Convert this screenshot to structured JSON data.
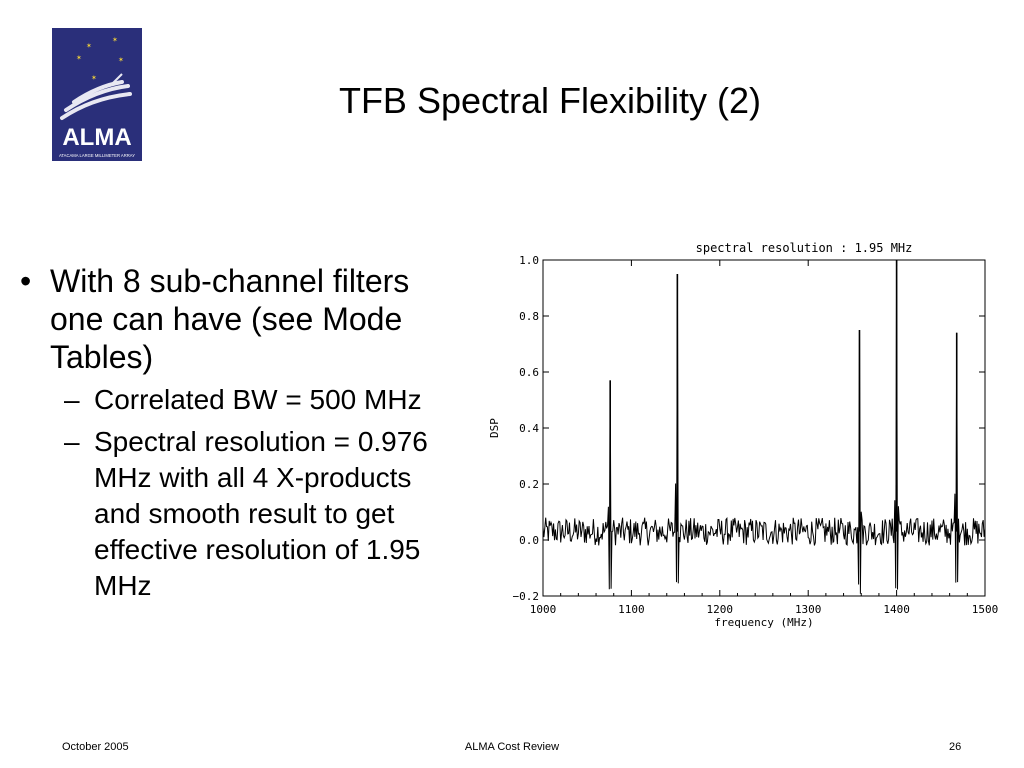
{
  "slide": {
    "title": "TFB Spectral Flexibility (2)"
  },
  "logo": {
    "text": "ALMA",
    "subtitle": "ATACAMA LARGE MILLIMETER ARRAY",
    "bg_color": "#2a2f7a"
  },
  "bullets": {
    "main": "With 8 sub-channel filters one can have (see Mode Tables)",
    "sub": [
      "Correlated BW = 500 MHz",
      "Spectral resolution = 0.976 MHz with all 4 X-products and smooth result to get effective resolution of 1.95 MHz"
    ]
  },
  "chart_data": {
    "type": "line",
    "title": "spectral resolution : 1.95 MHz",
    "xlabel": "frequency (MHz)",
    "ylabel": "DSP",
    "xlim": [
      1000,
      1500
    ],
    "ylim": [
      -0.2,
      1.0
    ],
    "xticks": [
      "1000",
      "1100",
      "1200",
      "1300",
      "1400",
      "1500"
    ],
    "yticks": [
      "−0.2",
      "0.0",
      "0.2",
      "0.4",
      "0.6",
      "0.8",
      "1.0"
    ],
    "baseline": 0.03,
    "noise_amplitude": 0.05,
    "peaks": [
      {
        "x": 1076,
        "y": 0.57
      },
      {
        "x": 1152,
        "y": 0.95
      },
      {
        "x": 1358,
        "y": 0.75
      },
      {
        "x": 1400,
        "y": 1.0
      },
      {
        "x": 1468,
        "y": 0.74
      }
    ],
    "line_color": "#000000",
    "grid": false,
    "legend": "none"
  },
  "footer": {
    "left": "October 2005",
    "center": "ALMA Cost Review",
    "right": "26"
  }
}
